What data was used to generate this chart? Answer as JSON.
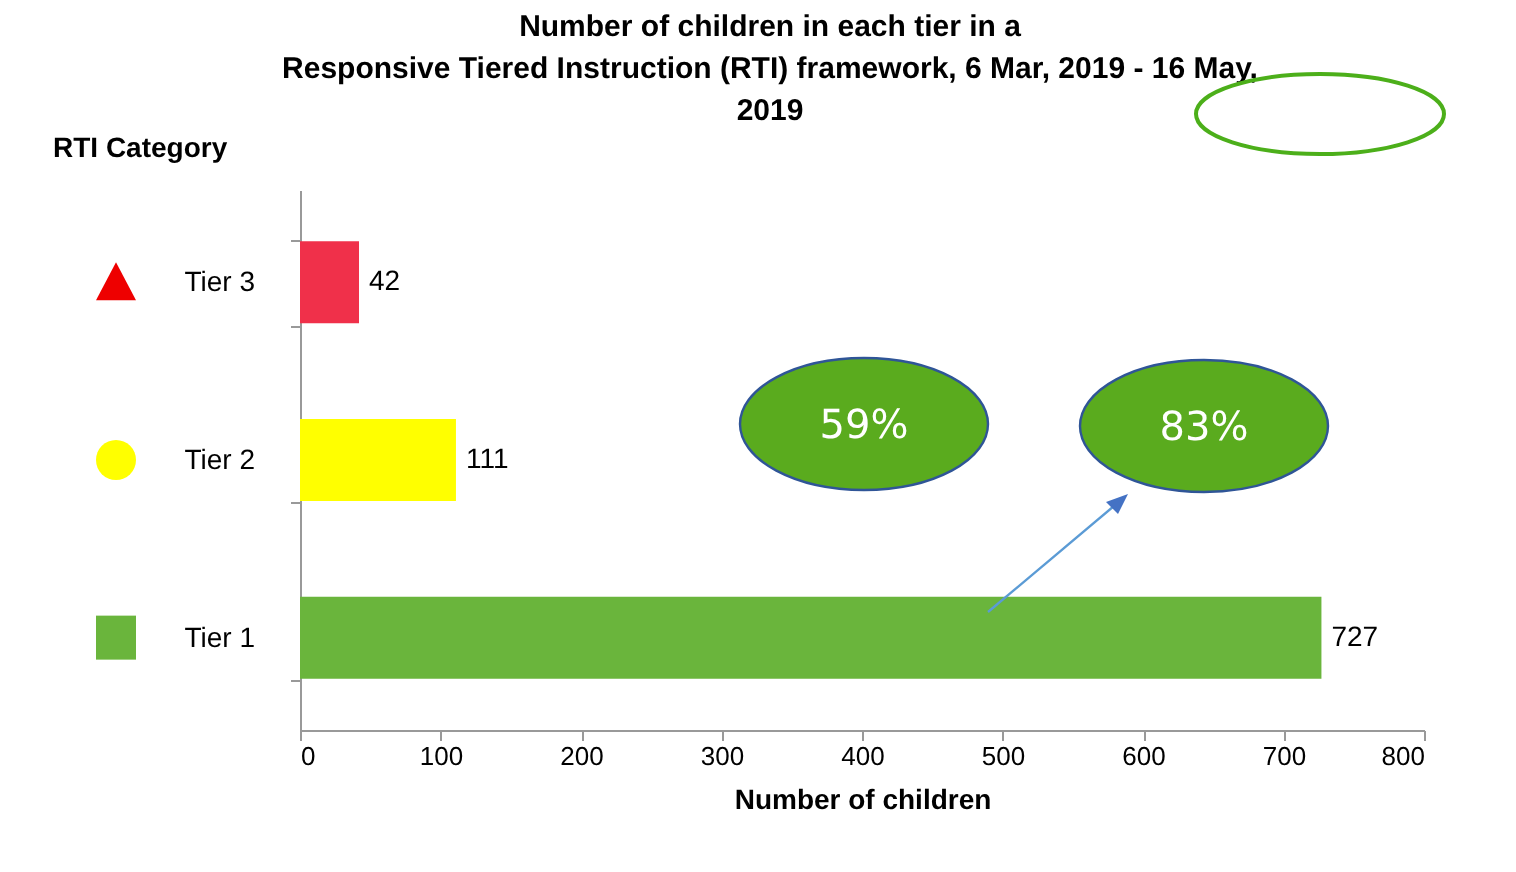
{
  "chart_data": {
    "type": "bar",
    "orientation": "horizontal",
    "title": "Number of children in each tier in a Responsive Tiered Instruction (RTI) framework, 6 Mar, 2019 - 16 May, 2019",
    "xlabel": "Number of children",
    "ylabel": "RTI Category",
    "categories": [
      "Tier 3",
      "Tier 2",
      "Tier 1"
    ],
    "values": [
      42,
      111,
      727
    ],
    "colors": [
      "#f0304a",
      "#ffff00",
      "#6ab53c"
    ],
    "xlim": [
      0,
      800
    ],
    "xticks": [
      0,
      100,
      200,
      300,
      400,
      500,
      600,
      700,
      800
    ],
    "data_labels": true,
    "grid": false,
    "annotations": [
      "59%",
      "83%"
    ]
  }
}
